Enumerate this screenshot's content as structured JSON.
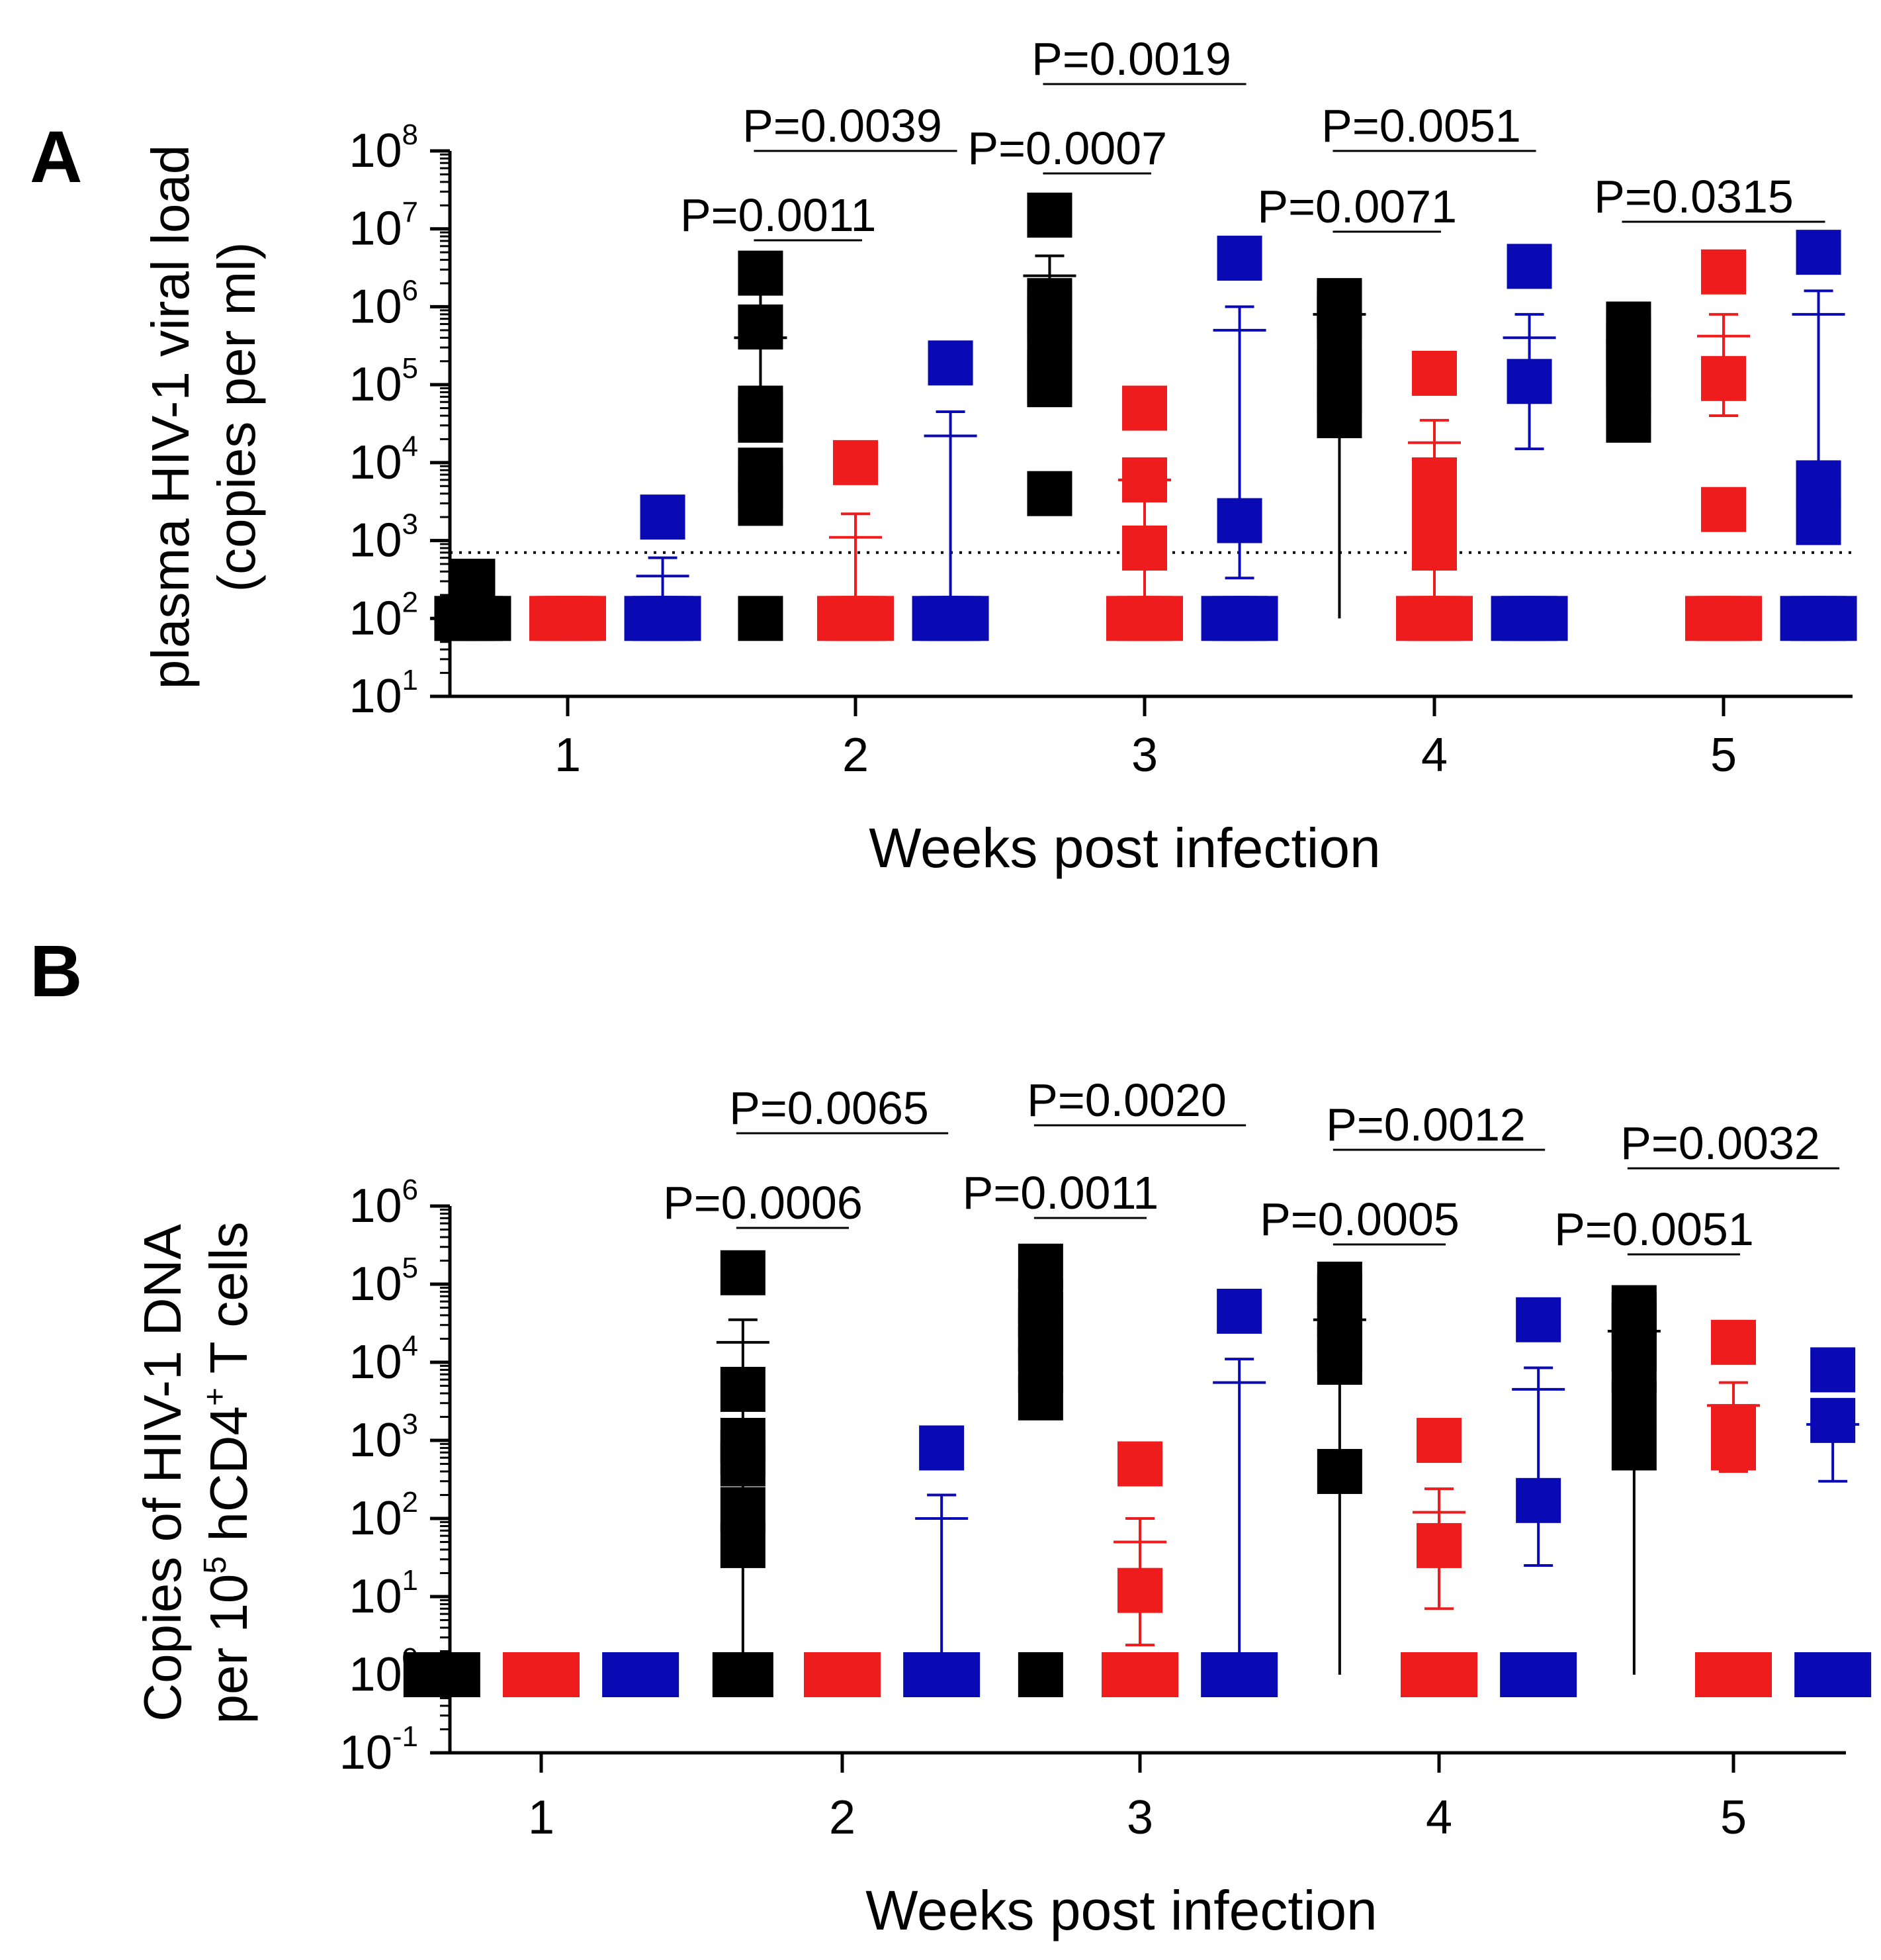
{
  "colors": {
    "group1": "#000000",
    "group2": "#ee1c1c",
    "group3": "#0a0ab4",
    "axis": "#000000"
  },
  "chart_data": [
    {
      "panel_label": "A",
      "type": "scatter",
      "scale": "log10",
      "ylabel_lines": [
        "plasma HIV-1 viral load",
        "(copies per ml)"
      ],
      "xlabel": "Weeks post infection",
      "x_ticks": [
        "1",
        "2",
        "3",
        "4",
        "5"
      ],
      "y_ticks": [
        {
          "base": "10",
          "exp": "1"
        },
        {
          "base": "10",
          "exp": "2"
        },
        {
          "base": "10",
          "exp": "3"
        },
        {
          "base": "10",
          "exp": "4"
        },
        {
          "base": "10",
          "exp": "5"
        },
        {
          "base": "10",
          "exp": "6"
        },
        {
          "base": "10",
          "exp": "7"
        },
        {
          "base": "10",
          "exp": "8"
        }
      ],
      "ylim_exp": [
        1,
        8
      ],
      "detection_limit": 700,
      "series": [
        {
          "name": "group1",
          "color": "#000000",
          "offset": -0.33,
          "points": [
            [
              100,
              100,
              300,
              100,
              100,
              100
            ],
            [
              2700000,
              550000,
              50000,
              40000,
              35000,
              8000,
              5000,
              3000,
              100
            ],
            [
              15000000,
              1200000,
              900000,
              700000,
              300000,
              150000,
              110000,
              100000,
              4000
            ],
            [
              1200000,
              1100000,
              1000000,
              800000,
              700000,
              300000,
              150000,
              80000,
              40000
            ],
            [
              600000,
              400000,
              300000,
              200000,
              150000,
              80000,
              35000
            ]
          ],
          "mean": [
            null,
            400000,
            2500000,
            800000,
            null
          ],
          "err_low": [
            null,
            80000,
            400000,
            null,
            null
          ],
          "err_high": [
            null,
            1500000,
            4500000,
            null,
            null
          ]
        },
        {
          "name": "group2",
          "color": "#ee1c1c",
          "offset": 0,
          "points": [
            [
              100,
              100,
              100,
              100,
              100,
              100
            ],
            [
              10000,
              100,
              100,
              100,
              100,
              100
            ],
            [
              50000,
              6000,
              800,
              100,
              100,
              100,
              100
            ],
            [
              140000,
              6000,
              3000,
              1500,
              800,
              100,
              100,
              100,
              100
            ],
            [
              2800000,
              120000,
              2500,
              100,
              100,
              100,
              100
            ]
          ],
          "mean": [
            null,
            1100,
            6000,
            18000,
            420000
          ],
          "err_low": [
            null,
            null,
            null,
            null,
            40000
          ],
          "err_high": [
            null,
            2200,
            10000,
            35000,
            800000
          ]
        },
        {
          "name": "group3",
          "color": "#0a0ab4",
          "offset": 0.33,
          "points": [
            [
              2000,
              100,
              100,
              100,
              100,
              100
            ],
            [
              190000,
              100,
              100,
              100,
              100,
              100
            ],
            [
              4200000,
              1800,
              100,
              100,
              100,
              100
            ],
            [
              3300000,
              110000,
              100,
              100,
              100,
              100
            ],
            [
              5000000,
              5500,
              1700,
              100,
              100,
              100,
              100
            ]
          ],
          "mean": [
            350,
            22000,
            500000,
            400000,
            800000
          ],
          "err_low": [
            null,
            null,
            330,
            15000,
            1100
          ],
          "err_high": [
            600,
            45000,
            1000000,
            800000,
            1600000
          ]
        }
      ],
      "significance": [
        {
          "label": "P=0.0039",
          "x1": -0.33,
          "x2": 0.33,
          "week": 2,
          "level": 2
        },
        {
          "label": "P=0.0011",
          "x1": -0.33,
          "x2": 0,
          "week": 2,
          "level": 1
        },
        {
          "label": "P=0.0019",
          "x1": -0.33,
          "x2": 0.33,
          "week": 3,
          "level": 2
        },
        {
          "label": "P=0.0007",
          "x1": -0.33,
          "x2": 0,
          "week": 3,
          "level": 1
        },
        {
          "label": "P=0.0051",
          "x1": -0.33,
          "x2": 0.33,
          "week": 4,
          "level": 2
        },
        {
          "label": "P=0.0071",
          "x1": -0.33,
          "x2": 0,
          "week": 4,
          "level": 1
        },
        {
          "label": "P=0.0315",
          "x1": -0.33,
          "x2": 0.33,
          "week": 5,
          "level": 1
        }
      ]
    },
    {
      "panel_label": "B",
      "type": "scatter",
      "scale": "log10",
      "ylabel_lines": [
        "Copies of HIV-1 DNA",
        "per 10",
        "5",
        " hCD4",
        "+",
        " T cells"
      ],
      "xlabel": "Weeks post infection",
      "x_ticks": [
        "1",
        "2",
        "3",
        "4",
        "5"
      ],
      "y_ticks": [
        {
          "base": "10",
          "exp": "-1"
        },
        {
          "base": "10",
          "exp": "0"
        },
        {
          "base": "10",
          "exp": "1"
        },
        {
          "base": "10",
          "exp": "2"
        },
        {
          "base": "10",
          "exp": "3"
        },
        {
          "base": "10",
          "exp": "4"
        },
        {
          "base": "10",
          "exp": "5"
        },
        {
          "base": "10",
          "exp": "6"
        }
      ],
      "ylim_exp": [
        -1,
        6
      ],
      "series": [
        {
          "name": "group1",
          "color": "#000000",
          "offset": -0.33,
          "points": [
            [
              1,
              1,
              1,
              1,
              1,
              1,
              1
            ],
            [
              140000,
              4500,
              1000,
              700,
              500,
              130,
              45,
              1,
              1
            ],
            [
              170000,
              60000,
              40000,
              25000,
              15000,
              8000,
              3500,
              1
            ],
            [
              100000,
              70000,
              40000,
              25000,
              15000,
              10000,
              400
            ],
            [
              50000,
              40000,
              30000,
              15000,
              8000,
              3000,
              800
            ]
          ],
          "mean": [
            null,
            18000,
            null,
            35000,
            25000
          ],
          "err_low": [
            null,
            null,
            null,
            null,
            null
          ],
          "err_high": [
            null,
            35000,
            null,
            null,
            null
          ]
        },
        {
          "name": "group2",
          "color": "#ee1c1c",
          "offset": 0,
          "points": [
            [
              1,
              1,
              1,
              1,
              1,
              1
            ],
            [
              1,
              1,
              1,
              1,
              1,
              1
            ],
            [
              500,
              12,
              1,
              1,
              1,
              1,
              1
            ],
            [
              1000,
              45,
              1,
              1,
              1,
              1,
              1
            ],
            [
              18000,
              1500,
              800,
              1,
              1,
              1,
              1
            ]
          ],
          "mean": [
            null,
            null,
            50,
            120,
            2800
          ],
          "err_low": [
            null,
            null,
            2.4,
            7,
            400
          ],
          "err_high": [
            null,
            null,
            100,
            240,
            5500
          ]
        },
        {
          "name": "group3",
          "color": "#0a0ab4",
          "offset": 0.33,
          "points": [
            [
              1,
              1,
              1,
              1,
              1,
              1
            ],
            [
              800,
              1,
              1,
              1,
              1,
              1
            ],
            [
              45000,
              1,
              1,
              1,
              1,
              1
            ],
            [
              35000,
              170,
              1,
              1,
              1,
              1
            ],
            [
              8000,
              1800,
              1,
              1,
              1,
              1
            ]
          ],
          "mean": [
            null,
            100,
            5500,
            4500,
            1600
          ],
          "err_low": [
            null,
            null,
            null,
            25,
            300
          ],
          "err_high": [
            null,
            200,
            11000,
            8500,
            2500
          ]
        }
      ],
      "significance": [
        {
          "label": "P=0.0065",
          "x1": -0.33,
          "x2": 0.33,
          "week": 2,
          "level": 2
        },
        {
          "label": "P=0.0006",
          "x1": -0.33,
          "x2": 0,
          "week": 2,
          "level": 1
        },
        {
          "label": "P=0.0020",
          "x1": -0.33,
          "x2": 0.33,
          "week": 3,
          "level": 2
        },
        {
          "label": "P=0.0011",
          "x1": -0.33,
          "x2": 0,
          "week": 3,
          "level": 1
        },
        {
          "label": "P=0.0012",
          "x1": -0.33,
          "x2": 0.33,
          "week": 4,
          "level": 2
        },
        {
          "label": "P=0.0005",
          "x1": -0.33,
          "x2": 0,
          "week": 4,
          "level": 1
        },
        {
          "label": "P=0.0032",
          "x1": -0.33,
          "x2": 0.33,
          "week": 5,
          "level": 2
        },
        {
          "label": "P=0.0051",
          "x1": -0.33,
          "x2": 0,
          "week": 5,
          "level": 1
        }
      ]
    }
  ]
}
